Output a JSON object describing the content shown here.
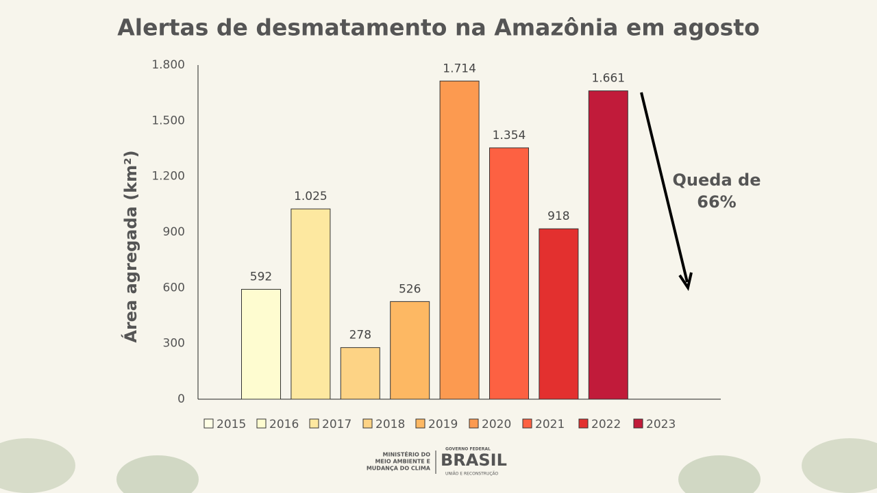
{
  "chart_data": {
    "type": "bar",
    "title": "Alertas de desmatamento na Amazônia em agosto",
    "y_label": "Área agregada (km²)",
    "annotation": [
      "Queda de",
      "66%"
    ],
    "ylim": [
      0,
      1800
    ],
    "yticks": [
      0,
      300,
      600,
      900,
      {
        "value": 1200,
        "label": "1.200"
      },
      {
        "value": 1500,
        "label": "1.500"
      },
      {
        "value": 1800,
        "label": "1.800"
      }
    ],
    "legend": "bottom",
    "series": [
      {
        "name": "2015",
        "color": "#ffffe5",
        "values": [
          null
        ]
      },
      {
        "name": "2016",
        "color": "#fefcd0",
        "values": [
          592
        ]
      },
      {
        "name": "2017",
        "color": "#fde8a0",
        "values": [
          1025
        ],
        "value_labels": [
          "1.025"
        ]
      },
      {
        "name": "2018",
        "color": "#fdd385",
        "values": [
          278
        ]
      },
      {
        "name": "2019",
        "color": "#fdb863",
        "values": [
          526
        ]
      },
      {
        "name": "2020",
        "color": "#fc9a50",
        "values": [
          1714
        ],
        "value_labels": [
          "1.714"
        ]
      },
      {
        "name": "2021",
        "color": "#fd6142",
        "values": [
          1354
        ],
        "value_labels": [
          "1.354"
        ]
      },
      {
        "name": "2022",
        "color": "#e3302f",
        "values": [
          918
        ]
      },
      {
        "name": "2023",
        "color": "#c11b3a",
        "values": [
          1661
        ],
        "value_labels": [
          "1.661"
        ]
      }
    ]
  },
  "footer": {
    "ministry": [
      "MINISTÉRIO DO",
      "MEIO AMBIENTE E",
      "MUDANÇA DO CLIMA"
    ],
    "gov": "GOVERNO FEDERAL",
    "brand": "BRASIL",
    "motto": "UNIÃO E RECONSTRUÇÃO"
  }
}
